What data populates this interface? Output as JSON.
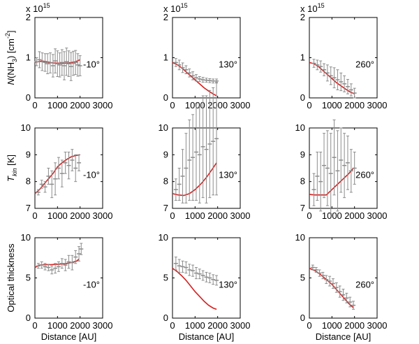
{
  "chart_data": [
    {
      "type": "line",
      "row": 0,
      "col": 0,
      "annotation": "-10°",
      "ylabel": "N(NH3) [cm-2]",
      "xlabel": "",
      "y_multiplier": "x 10^15",
      "xlim": [
        0,
        3000
      ],
      "ylim": [
        0,
        2
      ],
      "xticks": [
        "0",
        "1000",
        "2000",
        "3000"
      ],
      "yticks": [
        "0",
        "1",
        "2"
      ],
      "series": [
        {
          "kind": "model",
          "color": "#d42020",
          "x": [
            0,
            150,
            300,
            500,
            800,
            1200,
            1500,
            1800,
            2000
          ],
          "y": [
            0.89,
            0.9,
            0.92,
            0.9,
            0.87,
            0.86,
            0.87,
            0.9,
            0.95
          ]
        },
        {
          "kind": "data",
          "color": "#8c8c8c",
          "x": [
            80,
            200,
            320,
            450,
            560,
            680,
            800,
            900,
            1000,
            1100,
            1200,
            1300,
            1400,
            1500,
            1600,
            1700,
            1800,
            1900,
            2000
          ],
          "y": [
            0.9,
            0.95,
            0.9,
            0.88,
            0.85,
            0.87,
            0.8,
            0.92,
            0.85,
            0.82,
            0.88,
            0.8,
            0.9,
            0.85,
            0.78,
            0.86,
            0.88,
            0.82,
            0.8
          ],
          "err": [
            0.1,
            0.2,
            0.22,
            0.22,
            0.25,
            0.25,
            0.28,
            0.3,
            0.32,
            0.3,
            0.32,
            0.35,
            0.34,
            0.32,
            0.35,
            0.3,
            0.3,
            0.28,
            0.25
          ]
        }
      ]
    },
    {
      "type": "line",
      "row": 0,
      "col": 1,
      "annotation": "130°",
      "ylabel": "",
      "xlabel": "",
      "y_multiplier": "x 10^15",
      "xlim": [
        0,
        3000
      ],
      "ylim": [
        0,
        2
      ],
      "xticks": [
        "0",
        "1000",
        "2000",
        "3000"
      ],
      "yticks": [
        "0",
        "1",
        "2"
      ],
      "series": [
        {
          "kind": "model",
          "color": "#d42020",
          "x": [
            0,
            200,
            400,
            600,
            800,
            1000,
            1200,
            1400,
            1600,
            1800,
            1950
          ],
          "y": [
            0.88,
            0.83,
            0.75,
            0.65,
            0.55,
            0.45,
            0.35,
            0.25,
            0.17,
            0.1,
            0.05
          ]
        },
        {
          "kind": "data",
          "color": "#8c8c8c",
          "x": [
            150,
            300,
            450,
            600,
            750,
            900,
            1050,
            1200,
            1350,
            1500,
            1650,
            1800,
            1950
          ],
          "y": [
            0.88,
            0.82,
            0.75,
            0.7,
            0.62,
            0.55,
            0.5,
            0.47,
            0.45,
            0.44,
            0.43,
            0.42,
            0.42
          ],
          "err": [
            0.1,
            0.12,
            0.12,
            0.1,
            0.1,
            0.1,
            0.08,
            0.06,
            0.06,
            0.05,
            0.05,
            0.05,
            0.05
          ]
        }
      ]
    },
    {
      "type": "line",
      "row": 0,
      "col": 2,
      "annotation": "260°",
      "ylabel": "",
      "xlabel": "",
      "y_multiplier": "x 10^15",
      "xlim": [
        0,
        3000
      ],
      "ylim": [
        0,
        2
      ],
      "xticks": [
        "0",
        "1000",
        "2000",
        "3000"
      ],
      "yticks": [
        "0",
        "1",
        "2"
      ],
      "series": [
        {
          "kind": "model",
          "color": "#d42020",
          "x": [
            0,
            200,
            400,
            600,
            800,
            1000,
            1200,
            1400,
            1600,
            1800,
            2000
          ],
          "y": [
            0.88,
            0.85,
            0.78,
            0.68,
            0.58,
            0.48,
            0.38,
            0.3,
            0.22,
            0.15,
            0.1
          ]
        },
        {
          "kind": "data",
          "color": "#8c8c8c",
          "x": [
            200,
            350,
            500,
            650,
            800,
            950,
            1100,
            1250,
            1400,
            1550,
            1700,
            1850,
            2000
          ],
          "y": [
            0.86,
            0.82,
            0.78,
            0.7,
            0.62,
            0.55,
            0.5,
            0.45,
            0.4,
            0.35,
            0.28,
            0.2,
            0.12
          ],
          "err": [
            0.1,
            0.12,
            0.14,
            0.15,
            0.2,
            0.22,
            0.25,
            0.25,
            0.22,
            0.2,
            0.18,
            0.15,
            0.12
          ]
        }
      ]
    },
    {
      "type": "line",
      "row": 1,
      "col": 0,
      "annotation": "-10°",
      "ylabel": "T_kin [K]",
      "xlabel": "",
      "xlim": [
        0,
        3000
      ],
      "ylim": [
        7,
        10
      ],
      "xticks": [
        "0",
        "1000",
        "2000",
        "3000"
      ],
      "yticks": [
        "7",
        "8",
        "9",
        "10"
      ],
      "series": [
        {
          "kind": "model",
          "color": "#d42020",
          "x": [
            0,
            200,
            400,
            600,
            800,
            1000,
            1200,
            1400,
            1600,
            1800,
            2000
          ],
          "y": [
            7.55,
            7.7,
            7.9,
            8.1,
            8.3,
            8.55,
            8.7,
            8.82,
            8.92,
            8.97,
            9.0
          ]
        },
        {
          "kind": "data",
          "color": "#8c8c8c",
          "x": [
            150,
            300,
            450,
            600,
            750,
            900,
            1050,
            1200,
            1350,
            1500,
            1650,
            1800,
            1950
          ],
          "y": [
            7.6,
            7.9,
            7.8,
            8.2,
            7.9,
            8.1,
            8.5,
            8.3,
            8.7,
            8.6,
            8.8,
            8.5,
            8.7
          ],
          "err": [
            0.1,
            0.15,
            0.2,
            0.3,
            0.5,
            0.6,
            0.4,
            0.5,
            0.4,
            0.5,
            0.4,
            0.5,
            0.3
          ]
        }
      ]
    },
    {
      "type": "line",
      "row": 1,
      "col": 1,
      "annotation": "130°",
      "ylabel": "",
      "xlabel": "",
      "xlim": [
        0,
        3000
      ],
      "ylim": [
        7,
        10
      ],
      "xticks": [
        "0",
        "1000",
        "2000",
        "3000"
      ],
      "yticks": [
        "7",
        "8",
        "9",
        "10"
      ],
      "series": [
        {
          "kind": "model",
          "color": "#d42020",
          "x": [
            0,
            250,
            500,
            750,
            1000,
            1250,
            1500,
            1750,
            1950
          ],
          "y": [
            7.55,
            7.5,
            7.48,
            7.55,
            7.7,
            7.9,
            8.15,
            8.45,
            8.7
          ]
        },
        {
          "kind": "data",
          "color": "#8c8c8c",
          "x": [
            150,
            300,
            450,
            600,
            750,
            900,
            1050,
            1200,
            1350,
            1500,
            1650,
            1800,
            1950
          ],
          "y": [
            7.7,
            7.9,
            8.2,
            8.5,
            8.8,
            8.9,
            9.1,
            9.0,
            9.3,
            9.2,
            9.4,
            9.5,
            9.6
          ],
          "err": [
            0.4,
            0.6,
            1.0,
            1.3,
            1.5,
            1.6,
            1.8,
            1.8,
            1.9,
            2.0,
            2.0,
            2.0,
            2.1
          ]
        }
      ]
    },
    {
      "type": "line",
      "row": 1,
      "col": 2,
      "annotation": "260°",
      "ylabel": "",
      "xlabel": "",
      "xlim": [
        0,
        3000
      ],
      "ylim": [
        7,
        10
      ],
      "xticks": [
        "0",
        "1000",
        "2000",
        "3000"
      ],
      "yticks": [
        "7",
        "8",
        "9",
        "10"
      ],
      "series": [
        {
          "kind": "model",
          "color": "#d42020",
          "x": [
            0,
            250,
            500,
            750,
            1000,
            1250,
            1500,
            1750,
            1950
          ],
          "y": [
            7.52,
            7.5,
            7.5,
            7.5,
            7.7,
            7.9,
            8.1,
            8.3,
            8.5
          ]
        },
        {
          "kind": "data",
          "color": "#8c8c8c",
          "x": [
            200,
            350,
            500,
            650,
            800,
            950,
            1100,
            1250,
            1400,
            1550,
            1700,
            1850,
            2000
          ],
          "y": [
            7.7,
            8.2,
            8.0,
            8.6,
            8.5,
            8.3,
            8.9,
            8.4,
            8.8,
            8.6,
            8.7,
            8.4,
            8.5
          ],
          "err": [
            0.6,
            0.9,
            1.1,
            1.2,
            1.4,
            1.5,
            1.4,
            1.5,
            1.2,
            1.2,
            1.0,
            0.8,
            0.6
          ]
        }
      ]
    },
    {
      "type": "line",
      "row": 2,
      "col": 0,
      "annotation": "-10°",
      "ylabel": "Optical thickness",
      "xlabel": "Distance [AU]",
      "xlim": [
        0,
        3000
      ],
      "ylim": [
        0,
        10
      ],
      "xticks": [
        "0",
        "1000",
        "2000",
        "3000"
      ],
      "yticks": [
        "0",
        "5",
        "10"
      ],
      "series": [
        {
          "kind": "model",
          "color": "#d42020",
          "x": [
            0,
            200,
            400,
            700,
            1000,
            1300,
            1600,
            1850,
            1950
          ],
          "y": [
            6.3,
            6.6,
            6.65,
            6.65,
            6.7,
            6.75,
            6.9,
            7.1,
            7.35
          ]
        },
        {
          "kind": "data",
          "color": "#8c8c8c",
          "x": [
            150,
            300,
            450,
            600,
            750,
            900,
            1050,
            1200,
            1350,
            1500,
            1650,
            1800,
            1950,
            2050
          ],
          "y": [
            6.5,
            6.6,
            6.4,
            6.3,
            6.0,
            6.2,
            6.4,
            6.8,
            6.6,
            7.0,
            6.9,
            7.6,
            8.0,
            8.6
          ],
          "err": [
            0.3,
            0.4,
            0.4,
            0.4,
            0.5,
            0.6,
            0.6,
            0.6,
            0.7,
            0.8,
            0.9,
            0.8,
            0.9,
            0.7
          ]
        }
      ]
    },
    {
      "type": "line",
      "row": 2,
      "col": 1,
      "annotation": "130°",
      "ylabel": "",
      "xlabel": "Distance [AU]",
      "xlim": [
        0,
        3000
      ],
      "ylim": [
        0,
        10
      ],
      "xticks": [
        "0",
        "1000",
        "2000",
        "3000"
      ],
      "yticks": [
        "0",
        "5",
        "10"
      ],
      "series": [
        {
          "kind": "model",
          "color": "#d42020",
          "x": [
            0,
            200,
            400,
            600,
            800,
            1000,
            1200,
            1400,
            1600,
            1800,
            1950
          ],
          "y": [
            6.2,
            5.8,
            5.3,
            4.7,
            4.0,
            3.3,
            2.7,
            2.1,
            1.6,
            1.25,
            1.1
          ]
        },
        {
          "kind": "data",
          "color": "#8c8c8c",
          "x": [
            150,
            300,
            450,
            600,
            750,
            900,
            1050,
            1200,
            1350,
            1500,
            1650,
            1800,
            1950
          ],
          "y": [
            6.8,
            6.5,
            6.4,
            6.3,
            6.0,
            5.9,
            5.6,
            5.5,
            5.3,
            5.1,
            5.0,
            4.8,
            4.7
          ],
          "err": [
            0.8,
            0.8,
            0.7,
            0.7,
            0.7,
            0.7,
            0.7,
            0.6,
            0.6,
            0.6,
            0.6,
            0.6,
            0.6
          ]
        }
      ]
    },
    {
      "type": "line",
      "row": 2,
      "col": 2,
      "annotation": "260°",
      "ylabel": "",
      "xlabel": "Distance [AU]",
      "xlim": [
        0,
        3000
      ],
      "ylim": [
        0,
        10
      ],
      "xticks": [
        "0",
        "1000",
        "2000",
        "3000"
      ],
      "yticks": [
        "0",
        "5",
        "10"
      ],
      "series": [
        {
          "kind": "model",
          "color": "#d42020",
          "x": [
            0,
            250,
            500,
            750,
            1000,
            1250,
            1500,
            1750,
            1950
          ],
          "y": [
            6.2,
            5.9,
            5.4,
            4.8,
            4.2,
            3.4,
            2.6,
            1.8,
            1.3
          ]
        },
        {
          "kind": "data",
          "color": "#8c8c8c",
          "x": [
            150,
            300,
            450,
            600,
            750,
            900,
            1050,
            1200,
            1350,
            1500,
            1650,
            1800,
            1950
          ],
          "y": [
            6.3,
            6.0,
            5.6,
            5.3,
            4.8,
            4.6,
            4.3,
            3.8,
            3.3,
            2.9,
            2.5,
            2.0,
            1.6
          ],
          "err": [
            0.3,
            0.3,
            0.4,
            0.4,
            0.5,
            0.6,
            0.6,
            0.6,
            0.7,
            0.7,
            0.6,
            0.6,
            0.5
          ]
        }
      ]
    }
  ]
}
